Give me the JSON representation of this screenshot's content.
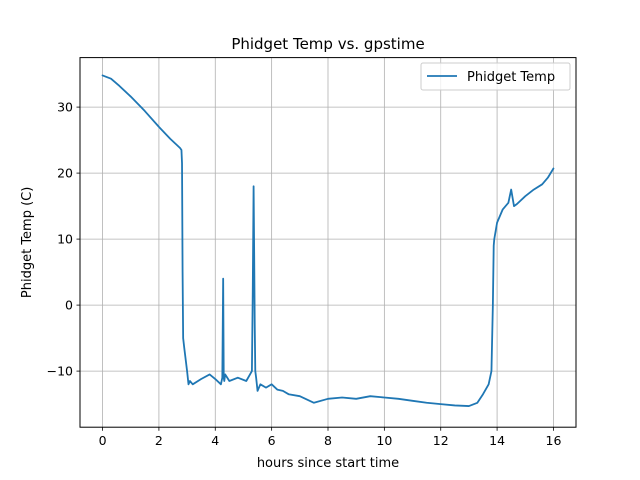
{
  "chart_data": {
    "type": "line",
    "title": "Phidget Temp vs. gpstime",
    "xlabel": "hours since start time",
    "ylabel": "Phidget Temp (C)",
    "xlim": [
      -0.8,
      16.8
    ],
    "ylim": [
      -18.5,
      37.5
    ],
    "xticks": [
      0,
      2,
      4,
      6,
      8,
      10,
      12,
      14,
      16
    ],
    "yticks": [
      -10,
      0,
      10,
      20,
      30
    ],
    "grid": true,
    "legend_position": "top-right",
    "series": [
      {
        "name": "Phidget Temp",
        "color": "#1f77b4",
        "x": [
          0.0,
          0.3,
          0.6,
          1.0,
          1.5,
          2.0,
          2.4,
          2.75,
          2.8,
          2.82,
          2.84,
          2.86,
          2.9,
          3.0,
          3.05,
          3.1,
          3.2,
          3.5,
          3.8,
          4.0,
          4.2,
          4.25,
          4.28,
          4.3,
          4.32,
          4.35,
          4.5,
          4.8,
          5.1,
          5.3,
          5.33,
          5.36,
          5.38,
          5.4,
          5.42,
          5.45,
          5.5,
          5.6,
          5.8,
          6.0,
          6.2,
          6.4,
          6.6,
          7.0,
          7.5,
          8.0,
          8.5,
          9.0,
          9.5,
          10.0,
          10.5,
          11.0,
          11.5,
          12.0,
          12.5,
          13.0,
          13.3,
          13.5,
          13.7,
          13.8,
          13.85,
          13.88,
          13.9,
          14.0,
          14.2,
          14.4,
          14.5,
          14.6,
          14.7,
          15.0,
          15.3,
          15.6,
          15.8,
          16.0
        ],
        "y": [
          34.8,
          34.3,
          33.2,
          31.6,
          29.4,
          27.0,
          25.2,
          23.8,
          23.5,
          21.5,
          5.0,
          -5.0,
          -6.5,
          -10.0,
          -12.0,
          -11.5,
          -12.0,
          -11.2,
          -10.5,
          -11.2,
          -12.0,
          -11.0,
          4.0,
          -11.0,
          -11.5,
          -10.5,
          -11.5,
          -11.0,
          -11.5,
          -10.0,
          2.0,
          18.0,
          8.0,
          -3.0,
          -10.0,
          -11.0,
          -13.0,
          -12.0,
          -12.5,
          -12.0,
          -12.8,
          -13.0,
          -13.5,
          -13.8,
          -14.8,
          -14.2,
          -14.0,
          -14.2,
          -13.8,
          -14.0,
          -14.2,
          -14.5,
          -14.8,
          -15.0,
          -15.2,
          -15.3,
          -14.8,
          -13.5,
          -12.0,
          -10.0,
          0.0,
          9.0,
          10.0,
          12.5,
          14.5,
          15.5,
          17.5,
          15.0,
          15.3,
          16.5,
          17.5,
          18.3,
          19.3,
          20.7
        ]
      }
    ]
  }
}
